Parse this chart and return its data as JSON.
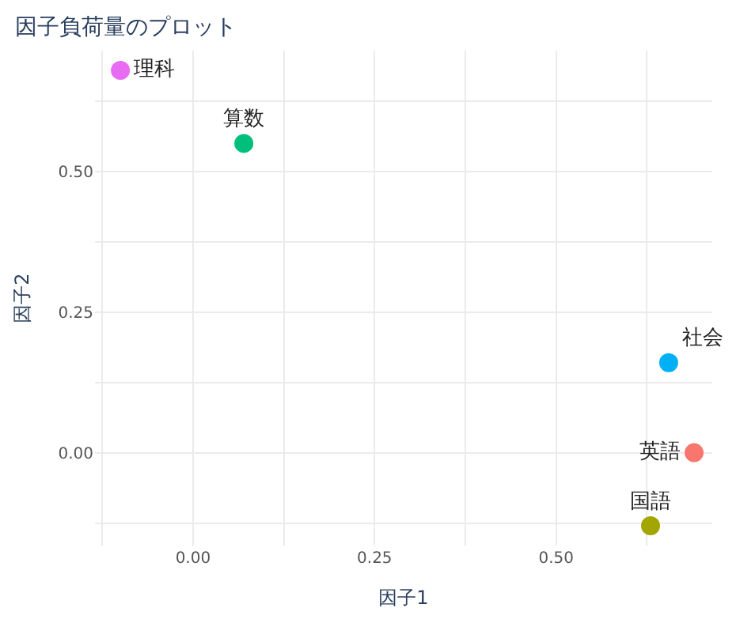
{
  "chart_data": {
    "type": "scatter",
    "title": "因子負荷量のプロット",
    "xlabel": "因子1",
    "ylabel": "因子2",
    "series": [
      {
        "name": "英語",
        "color": "#f8766d",
        "x": [
          0.69
        ],
        "values": [
          0.0
        ]
      },
      {
        "name": "国語",
        "color": "#a3a500",
        "x": [
          0.63
        ],
        "values": [
          -0.13
        ]
      },
      {
        "name": "算数",
        "color": "#00bf7d",
        "x": [
          0.07
        ],
        "values": [
          0.55
        ]
      },
      {
        "name": "社会",
        "color": "#00b0f6",
        "x": [
          0.655
        ],
        "values": [
          0.16
        ]
      },
      {
        "name": "理科",
        "color": "#e76bf3",
        "x": [
          -0.1
        ],
        "values": [
          0.68
        ]
      }
    ],
    "xlim": [
      -0.135,
      0.715
    ],
    "ylim": [
      -0.165,
      0.715
    ],
    "xticks": [
      {
        "value": -0.125,
        "label": null
      },
      {
        "value": 0.0,
        "label": "0.00"
      },
      {
        "value": 0.125,
        "label": null
      },
      {
        "value": 0.25,
        "label": "0.25"
      },
      {
        "value": 0.375,
        "label": null
      },
      {
        "value": 0.5,
        "label": "0.50"
      },
      {
        "value": 0.625,
        "label": null
      }
    ],
    "yticks": [
      {
        "value": -0.125,
        "label": null
      },
      {
        "value": 0.0,
        "label": "0.00"
      },
      {
        "value": 0.125,
        "label": null
      },
      {
        "value": 0.25,
        "label": "0.25"
      },
      {
        "value": 0.375,
        "label": null
      },
      {
        "value": 0.5,
        "label": "0.50"
      },
      {
        "value": 0.625,
        "label": null
      }
    ],
    "grid": true,
    "legend": false,
    "marker": "circle"
  }
}
